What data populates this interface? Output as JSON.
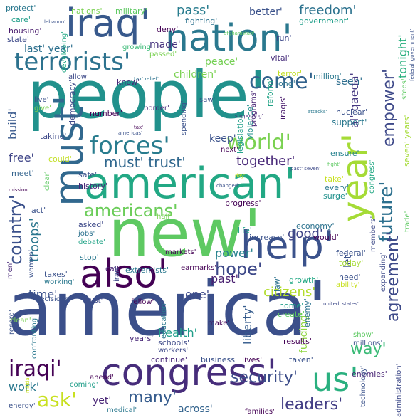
{
  "cloud": {
    "words": [
      {
        "text": "america'",
        "color": "#3b4f8a"
      },
      {
        "text": "people'",
        "color": "#21918c"
      },
      {
        "text": "new'",
        "color": "#5ec962"
      },
      {
        "text": "congress'",
        "color": "#472d7b"
      },
      {
        "text": "american'",
        "color": "#22a884"
      },
      {
        "text": "must'",
        "color": "#31688e"
      },
      {
        "text": "iraq'",
        "color": "#38598c"
      },
      {
        "text": "nation'",
        "color": "#2a788e"
      },
      {
        "text": "also'",
        "color": "#440154"
      },
      {
        "text": "help'",
        "color": "#3b528b"
      },
      {
        "text": "year'",
        "color": "#a5db36"
      },
      {
        "text": "us'",
        "color": "#2ab07f"
      },
      {
        "text": "terrorists'",
        "color": "#2c728e"
      },
      {
        "text": "forces'",
        "color": "#287c8e"
      },
      {
        "text": "world'",
        "color": "#7ad151"
      },
      {
        "text": "come'",
        "color": "#33638d"
      },
      {
        "text": "future'",
        "color": "#2d708e"
      },
      {
        "text": "empower'",
        "color": "#3e4989"
      },
      {
        "text": "agreement'",
        "color": "#3e4a89"
      },
      {
        "text": "iraqi'",
        "color": "#440154"
      },
      {
        "text": "americans'",
        "color": "#6ccd5a"
      },
      {
        "text": "must' trust'",
        "color": "#31688e"
      },
      {
        "text": "country'",
        "color": "#3b518b"
      },
      {
        "text": "hope'",
        "color": "#3e4989"
      },
      {
        "text": "security'",
        "color": "#3d4e8a"
      },
      {
        "text": "leaders'",
        "color": "#433e85"
      },
      {
        "text": "many'",
        "color": "#365c8d"
      },
      {
        "text": "ask'",
        "color": "#c8e020"
      },
      {
        "text": "citizens'",
        "color": "#b2dd2d"
      },
      {
        "text": "troops'",
        "color": "#2a768e"
      },
      {
        "text": "way'",
        "color": "#3aba76"
      },
      {
        "text": "freedom'",
        "color": "#2c728e"
      },
      {
        "text": "pass'",
        "color": "#287c8e"
      },
      {
        "text": "together'",
        "color": "#482878"
      },
      {
        "text": "good'",
        "color": "#404688"
      },
      {
        "text": "keep'",
        "color": "#3b528b"
      },
      {
        "text": "build'",
        "color": "#38598c"
      },
      {
        "text": "last' year'",
        "color": "#2d708e"
      },
      {
        "text": "peace'",
        "color": "#75d054"
      },
      {
        "text": "al' qaeda'",
        "color": "#453781"
      },
      {
        "text": "tonight'",
        "color": "#2ab07f"
      },
      {
        "text": "better'",
        "color": "#3b528b"
      },
      {
        "text": "children'",
        "color": "#7ad151"
      },
      {
        "text": "made'",
        "color": "#46327e"
      },
      {
        "text": "one'",
        "color": "#3e4a89"
      },
      {
        "text": "time'",
        "color": "#3b518b"
      },
      {
        "text": "past'",
        "color": "#481f70"
      },
      {
        "text": "free'",
        "color": "#404688"
      },
      {
        "text": "power'",
        "color": "#26828e"
      },
      {
        "text": "health'",
        "color": "#1f9e89"
      },
      {
        "text": "funding'",
        "color": "#90d743"
      },
      {
        "text": "liberty'",
        "color": "#365c8d"
      },
      {
        "text": "work'",
        "color": "#2a788e"
      },
      {
        "text": "across'",
        "color": "#33638d"
      },
      {
        "text": "yet'",
        "color": "#482475"
      },
      {
        "text": "let'",
        "color": "#3b528b"
      },
      {
        "text": "seen'",
        "color": "#2e6e8e"
      },
      {
        "text": "protect'",
        "color": "#2a788e"
      },
      {
        "text": "nations'",
        "color": "#7ad151"
      },
      {
        "text": "military'",
        "color": "#5ec962"
      },
      {
        "text": "care'",
        "color": "#1f9e89"
      },
      {
        "text": "housing'",
        "color": "#481a6c"
      },
      {
        "text": "state'",
        "color": "#3e4a89"
      },
      {
        "text": "deny'",
        "color": "#440154"
      },
      {
        "text": "fighting'",
        "color": "#2c728e"
      },
      {
        "text": "government'",
        "color": "#1f9e89"
      },
      {
        "text": "developing'",
        "color": "#22a884"
      },
      {
        "text": "growing'",
        "color": "#3aba76"
      },
      {
        "text": "passed'",
        "color": "#7ad151"
      },
      {
        "text": "run'",
        "color": "#3e4989"
      },
      {
        "text": "vital'",
        "color": "#472d7b"
      },
      {
        "text": "million'",
        "color": "#2a788e"
      },
      {
        "text": "terror'",
        "color": "#c2df23"
      },
      {
        "text": "know'",
        "color": "#482878"
      },
      {
        "text": "allow'",
        "color": "#3e4a89"
      },
      {
        "text": "programs'",
        "color": "#482475"
      },
      {
        "text": "reform'",
        "color": "#20a386"
      },
      {
        "text": "long'",
        "color": "#2c728e"
      },
      {
        "text": "live'",
        "color": "#3b528b"
      },
      {
        "text": "give'",
        "color": "#7ad151"
      },
      {
        "text": "democracy'",
        "color": "#3e4a89"
      },
      {
        "text": "number'",
        "color": "#440154"
      },
      {
        "text": "border'",
        "color": "#482878"
      },
      {
        "text": "saw'",
        "color": "#3b528b"
      },
      {
        "text": "legislation'",
        "color": "#1f9e89"
      },
      {
        "text": "violence'",
        "color": "#21918c"
      },
      {
        "text": "iraqis'",
        "color": "#481a6c"
      },
      {
        "text": "nuclear'",
        "color": "#3b528b"
      },
      {
        "text": "support'",
        "color": "#2a788e"
      },
      {
        "text": "steps'",
        "color": "#5ec962"
      },
      {
        "text": "taking'",
        "color": "#3e4989"
      },
      {
        "text": "spending'",
        "color": "#3b528b"
      },
      {
        "text": "ensure'",
        "color": "#26828e"
      },
      {
        "text": "next'",
        "color": "#440154"
      },
      {
        "text": "seven' years'",
        "color": "#a5db36"
      },
      {
        "text": "could'",
        "color": "#c2df23"
      },
      {
        "text": "meet'",
        "color": "#33638d"
      },
      {
        "text": "safe'",
        "color": "#3b528b"
      },
      {
        "text": "history'",
        "color": "#482878"
      },
      {
        "text": "clear'",
        "color": "#5ec962"
      },
      {
        "text": "congress'",
        "color": "#22a884"
      },
      {
        "text": "members'",
        "color": "#3e4a89"
      },
      {
        "text": "take'",
        "color": "#c8e020"
      },
      {
        "text": "every'",
        "color": "#2a788e"
      },
      {
        "text": "surge'",
        "color": "#21918c"
      },
      {
        "text": "progress'",
        "color": "#440154"
      },
      {
        "text": "act'",
        "color": "#3b528b"
      },
      {
        "text": "asked'",
        "color": "#3e4a89"
      },
      {
        "text": "half'",
        "color": "#7ad151"
      },
      {
        "text": "jobs'",
        "color": "#2c728e"
      },
      {
        "text": "debate'",
        "color": "#20a386"
      },
      {
        "text": "life'",
        "color": "#1f9e89"
      },
      {
        "text": "economy'",
        "color": "#2c728e"
      },
      {
        "text": "increase'",
        "color": "#3b528b"
      },
      {
        "text": "would'",
        "color": "#440154"
      },
      {
        "text": "trade'",
        "color": "#5ec962"
      },
      {
        "text": "stop'",
        "color": "#2a788e"
      },
      {
        "text": "markets'",
        "color": "#440154"
      },
      {
        "text": "women'",
        "color": "#3b528b"
      },
      {
        "text": "men'",
        "color": "#482878"
      },
      {
        "text": "call'",
        "color": "#482475"
      },
      {
        "text": "iran'",
        "color": "#3e4989"
      },
      {
        "text": "extremists'",
        "color": "#2a788e"
      },
      {
        "text": "federal'",
        "color": "#3b528b"
      },
      {
        "text": "today'",
        "color": "#a5db36"
      },
      {
        "text": "taxes'",
        "color": "#3b528b"
      },
      {
        "text": "working'",
        "color": "#2a788e"
      },
      {
        "text": "earmarks'",
        "color": "#440154"
      },
      {
        "text": "need'",
        "color": "#3b528b"
      },
      {
        "text": "ability'",
        "color": "#c8e020"
      },
      {
        "text": "growth'",
        "color": "#22a884"
      },
      {
        "text": "expanding'",
        "color": "#3e4a89"
      },
      {
        "text": "decisions'",
        "color": "#3b528b"
      },
      {
        "text": "trust'",
        "color": "#3e4a89"
      },
      {
        "text": "fellow'",
        "color": "#440154"
      },
      {
        "text": "record'",
        "color": "#3b528b"
      },
      {
        "text": "law'",
        "color": "#2c728e"
      },
      {
        "text": "clean'",
        "color": "#7ad151"
      },
      {
        "text": "education'",
        "color": "#2a788e"
      },
      {
        "text": "make'",
        "color": "#440154"
      },
      {
        "text": "home'",
        "color": "#1f9e89"
      },
      {
        "text": "create'",
        "color": "#5ec962"
      },
      {
        "text": "enemy'",
        "color": "#2c728e"
      },
      {
        "text": "years'",
        "color": "#482878"
      },
      {
        "text": "schools'",
        "color": "#3e4a89"
      },
      {
        "text": "workers'",
        "color": "#3e4989"
      },
      {
        "text": "results'",
        "color": "#440154"
      },
      {
        "text": "show'",
        "color": "#5ec962"
      },
      {
        "text": "millions'",
        "color": "#3b528b"
      },
      {
        "text": "confronting'",
        "color": "#2a788e"
      },
      {
        "text": "continue'",
        "color": "#482878"
      },
      {
        "text": "business'",
        "color": "#3b528b"
      },
      {
        "text": "lives'",
        "color": "#440154"
      },
      {
        "text": "taken'",
        "color": "#3b528b"
      },
      {
        "text": "enemies'",
        "color": "#482475"
      },
      {
        "text": "technology'",
        "color": "#3b528b"
      },
      {
        "text": "administration'",
        "color": "#3e4a89"
      },
      {
        "text": "ahead'",
        "color": "#440154"
      },
      {
        "text": "coming'",
        "color": "#1f9e89"
      },
      {
        "text": "medical'",
        "color": "#2a788e"
      },
      {
        "text": "families'",
        "color": "#440154"
      },
      {
        "text": "energy'",
        "color": "#3b528b"
      },
      {
        "text": "afghanistan'",
        "color": "#5ec962"
      },
      {
        "text": "lebanon'",
        "color": "#3b528b"
      },
      {
        "text": "tax' relief'",
        "color": "#2c728e"
      },
      {
        "text": "federal' government'",
        "color": "#3b528b"
      },
      {
        "text": "attacks'",
        "color": "#2a788e"
      },
      {
        "text": "fight'",
        "color": "#5ec962"
      },
      {
        "text": "past' seven'",
        "color": "#3e4a89"
      },
      {
        "text": "mission'",
        "color": "#440154"
      },
      {
        "text": "changed'",
        "color": "#3b528b"
      },
      {
        "text": "day'",
        "color": "#c8e020"
      },
      {
        "text": "supporting'",
        "color": "#482878"
      },
      {
        "text": "americas'",
        "color": "#3b528b"
      },
      {
        "text": "tax'",
        "color": "#440154"
      },
      {
        "text": "united' states'",
        "color": "#3e4a89"
      },
      {
        "text": "militia'",
        "color": "#c8e020"
      }
    ]
  }
}
